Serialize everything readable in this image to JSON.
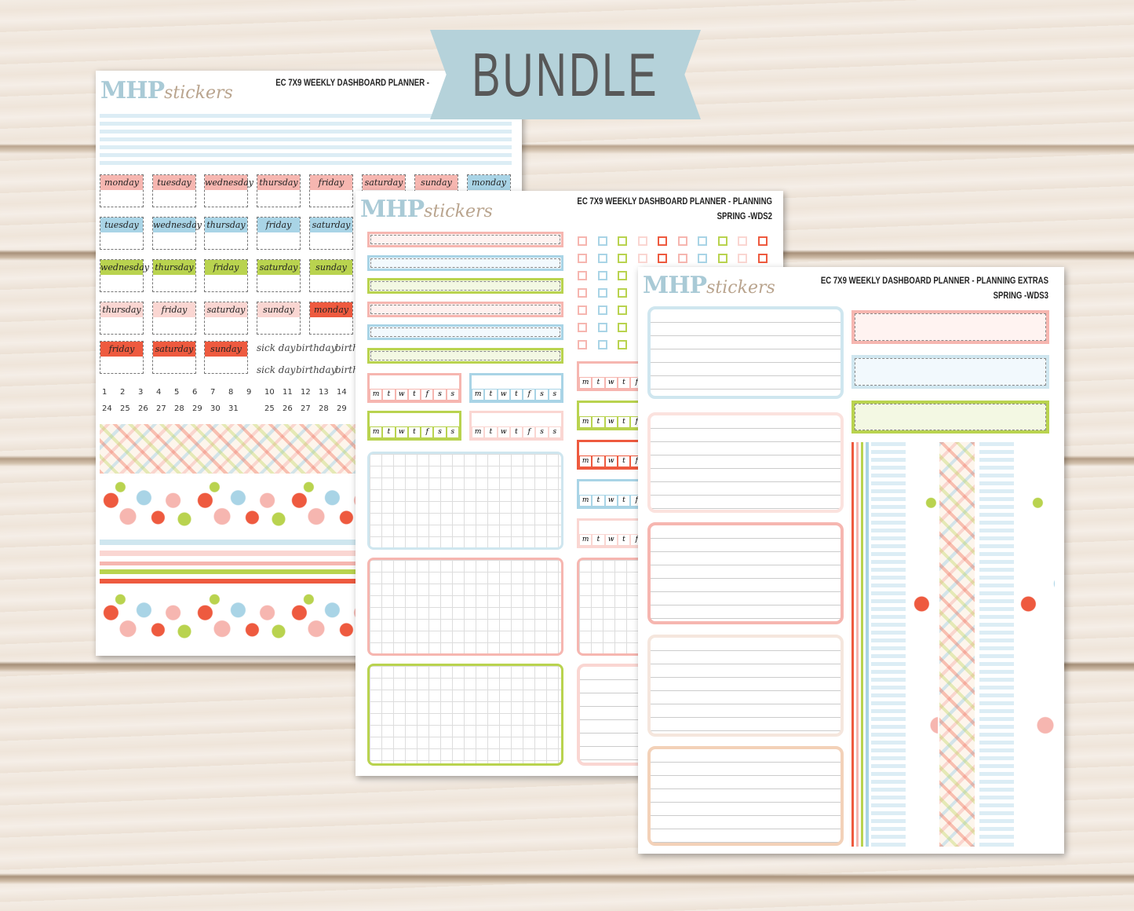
{
  "banner": {
    "label": "BUNDLE",
    "color": "#b5d2da"
  },
  "brand": {
    "logo_main": "MHP",
    "logo_script": "stickers"
  },
  "colors": {
    "pink": "#f6b6b0",
    "blue": "#a9d4e6",
    "green": "#b9d34f",
    "light_pink": "#fad6d2",
    "red": "#ee5a3f"
  },
  "sheet1": {
    "title": "EC 7X9 WEEKLY DASHBOARD PLANNER -",
    "day_rows": [
      {
        "color": "pink",
        "days": [
          "monday",
          "tuesday",
          "wednesday",
          "thursday",
          "friday",
          "saturday",
          "sunday",
          "monday"
        ],
        "last_color": "blue"
      },
      {
        "color": "blue",
        "days": [
          "tuesday",
          "wednesday",
          "thursday",
          "friday",
          "saturday"
        ]
      },
      {
        "color": "green",
        "days": [
          "wednesday",
          "thursday",
          "friday",
          "saturday",
          "sunday"
        ]
      },
      {
        "color": "light_pink",
        "days": [
          "thursday",
          "friday",
          "saturday",
          "sunday",
          "monday"
        ],
        "last_color": "red"
      },
      {
        "color": "red",
        "days": [
          "friday",
          "saturday",
          "sunday"
        ]
      }
    ],
    "events": [
      "sick day",
      "birthday",
      "birthd",
      "sick day",
      "birthday",
      "birthd"
    ],
    "numbers_row1": [
      "1",
      "2",
      "3",
      "4",
      "5",
      "6",
      "7",
      "8",
      "9",
      "10",
      "11",
      "12",
      "13",
      "14"
    ],
    "numbers_row2": [
      "24",
      "25",
      "26",
      "27",
      "28",
      "29",
      "30",
      "31",
      "",
      "25",
      "26",
      "27",
      "28",
      "29"
    ]
  },
  "sheet2": {
    "title_line1": "EC 7X9 WEEKLY DASHBOARD PLANNER - PLANNING",
    "title_line2": "SPRING -WDS2",
    "habit_letters": [
      "m",
      "t",
      "w",
      "t",
      "f",
      "s",
      "s"
    ]
  },
  "sheet3": {
    "title_line1": "EC 7X9 WEEKLY DASHBOARD PLANNER - PLANNING EXTRAS",
    "title_line2": "SPRING -WDS3"
  }
}
